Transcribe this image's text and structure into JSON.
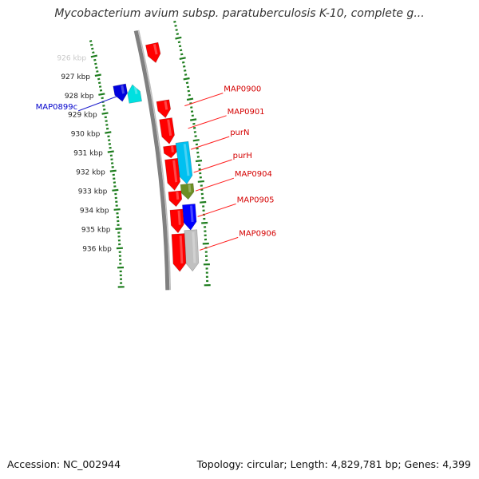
{
  "title": "Mycobacterium avium subsp. paratuberculosis K-10, complete g...",
  "footer": {
    "accession": "Accession: NC_002944",
    "stats": "Topology: circular; Length: 4,829,781 bp; Genes: 4,399"
  },
  "colors": {
    "backbone": "#808080",
    "ticks": "#1e7d1e",
    "forward_label": "#d40000",
    "reverse_label": "#0000cc",
    "leader_forward": "#ff2020",
    "leader_reverse": "#1a1acc"
  },
  "ruler": {
    "unit": "kbp",
    "major_ticks": [
      {
        "kbp": 926,
        "label": "926 kbp",
        "faded": true
      },
      {
        "kbp": 927,
        "label": "927 kbp"
      },
      {
        "kbp": 928,
        "label": "928 kbp"
      },
      {
        "kbp": 929,
        "label": "929 kbp"
      },
      {
        "kbp": 930,
        "label": "930 kbp"
      },
      {
        "kbp": 931,
        "label": "931 kbp"
      },
      {
        "kbp": 932,
        "label": "932 kbp"
      },
      {
        "kbp": 933,
        "label": "933 kbp"
      },
      {
        "kbp": 934,
        "label": "934 kbp"
      },
      {
        "kbp": 935,
        "label": "935 kbp"
      },
      {
        "kbp": 936,
        "label": "936 kbp"
      }
    ]
  },
  "genes": [
    {
      "id": "MAP0898",
      "label": "",
      "strand": "+",
      "ring": 1,
      "start_kbp": 926.0,
      "end_kbp": 926.95,
      "color": "#ff0000"
    },
    {
      "id": "MAP0899c",
      "label": "MAP0899c",
      "strand": "-",
      "ring": -1,
      "start_kbp": 927.8,
      "end_kbp": 928.7,
      "color": "#00e0e0"
    },
    {
      "id": "MAP0899c_b",
      "label": "",
      "strand": "+",
      "ring": -2,
      "start_kbp": 927.7,
      "end_kbp": 928.55,
      "color": "#0000dd"
    },
    {
      "id": "MAP0900",
      "label": "MAP0900",
      "strand": "+",
      "ring": 1,
      "start_kbp": 928.85,
      "end_kbp": 929.7,
      "color": "#ff0000"
    },
    {
      "id": "MAP0901",
      "label": "MAP0901",
      "strand": "+",
      "ring": 1,
      "start_kbp": 929.75,
      "end_kbp": 931.0,
      "color": "#ff0000"
    },
    {
      "id": "purN",
      "label": "purN",
      "strand": "+",
      "ring": 1,
      "start_kbp": 931.1,
      "end_kbp": 931.7,
      "color": "#ff0000"
    },
    {
      "id": "purN_b",
      "label": "",
      "strand": "+",
      "ring": 2,
      "start_kbp": 931.0,
      "end_kbp": 933.05,
      "color": "#00c0f0"
    },
    {
      "id": "purH",
      "label": "purH",
      "strand": "+",
      "ring": 1,
      "start_kbp": 931.75,
      "end_kbp": 933.3,
      "color": "#ff0000"
    },
    {
      "id": "MAP0904",
      "label": "MAP0904",
      "strand": "+",
      "ring": 2,
      "start_kbp": 933.05,
      "end_kbp": 933.8,
      "color": "#6b8e23"
    },
    {
      "id": "MAP0904_b",
      "label": "",
      "strand": "+",
      "ring": 1,
      "start_kbp": 933.35,
      "end_kbp": 934.1,
      "color": "#ff0000"
    },
    {
      "id": "MAP0905",
      "label": "MAP0905",
      "strand": "+",
      "ring": 2,
      "start_kbp": 934.05,
      "end_kbp": 935.3,
      "color": "#0000ff"
    },
    {
      "id": "MAP0905_b",
      "label": "",
      "strand": "+",
      "ring": 1,
      "start_kbp": 934.25,
      "end_kbp": 935.4,
      "color": "#ff0000"
    },
    {
      "id": "MAP0906",
      "label": "MAP0906",
      "strand": "+",
      "ring": 2,
      "start_kbp": 935.3,
      "end_kbp": 937.3,
      "color": "#c0c0c0"
    },
    {
      "id": "MAP0906_b",
      "label": "",
      "strand": "+",
      "ring": 1,
      "start_kbp": 935.45,
      "end_kbp": 937.3,
      "color": "#ff0000"
    }
  ]
}
